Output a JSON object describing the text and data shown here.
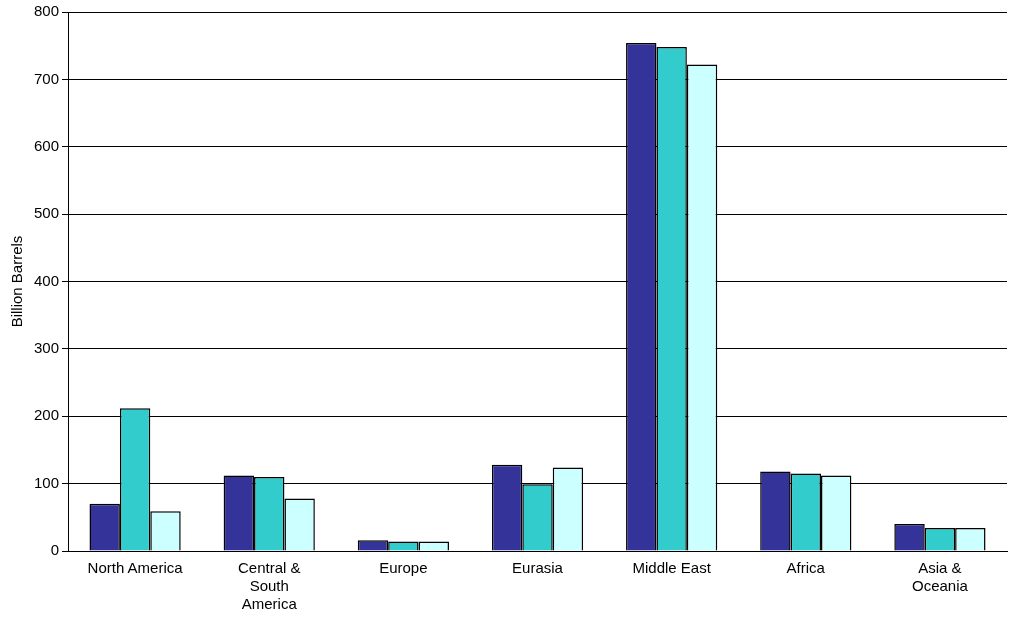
{
  "chart_data": {
    "type": "bar",
    "ylabel": "Billion Barrels",
    "categories": [
      "North America",
      "Central & South America",
      "Europe",
      "Eurasia",
      "Middle East",
      "Africa",
      "Asia & Oceania"
    ],
    "series": [
      {
        "color": "#333399",
        "values": [
          70,
          112,
          16,
          128,
          754,
          118,
          40
        ]
      },
      {
        "color": "#33cccc",
        "values": [
          212,
          110,
          14,
          99,
          748,
          115,
          34
        ]
      },
      {
        "color": "#ccffff",
        "values": [
          59,
          78,
          14,
          124,
          722,
          112,
          34
        ]
      }
    ],
    "ylim": [
      0,
      800
    ],
    "yticks": [
      0,
      100,
      200,
      300,
      400,
      500,
      600,
      700,
      800
    ],
    "grid": "y"
  }
}
